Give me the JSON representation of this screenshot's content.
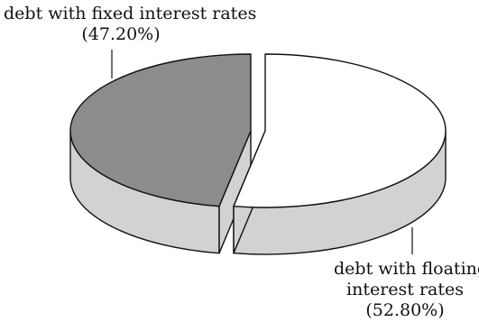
{
  "chart_data": {
    "type": "pie",
    "style": "3d-exploded",
    "slices": [
      {
        "label_lines": [
          "debt with fixed interest rates",
          "(47.20%)"
        ],
        "value": 47.2,
        "color": "#8c8c8c",
        "side_color": "#d2d2d2"
      },
      {
        "label_lines": [
          "debt with floating",
          "interest rates",
          "(52.80%)"
        ],
        "value": 52.8,
        "color": "#ffffff",
        "side_color": "#d2d2d2"
      }
    ],
    "legend": "none",
    "outline_color": "#111111"
  }
}
